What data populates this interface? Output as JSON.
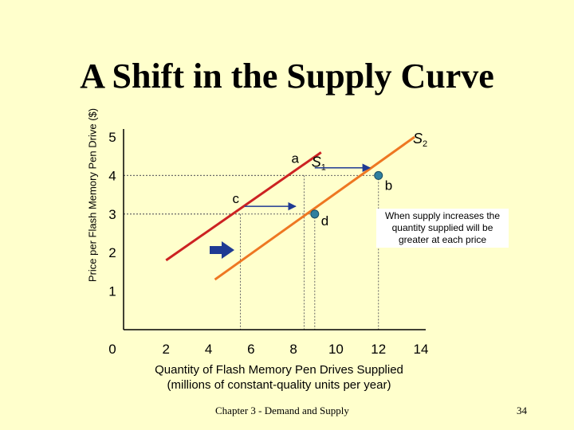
{
  "slide": {
    "title": "A Shift in the Supply Curve",
    "footer": "Chapter 3 - Demand and Supply",
    "page_number": "34"
  },
  "callout": "When supply increases the quantity supplied will be greater at each price",
  "chart_data": {
    "type": "line",
    "title": "A Shift in the Supply Curve",
    "xlabel_line1": "Quantity of Flash Memory Pen Drives Supplied",
    "xlabel_line2": "(millions of constant-quality units per year)",
    "ylabel": "Price per Flash Memory Pen Drive ($)",
    "xlim": [
      0,
      14
    ],
    "ylim": [
      0,
      5
    ],
    "x_ticks": [
      0,
      2,
      4,
      6,
      8,
      10,
      12,
      14
    ],
    "y_ticks": [
      1,
      2,
      3,
      4,
      5
    ],
    "series": [
      {
        "name": "S1",
        "label_main": "S",
        "label_sub": "1",
        "color": "#cc2222",
        "points": [
          [
            2,
            1.8
          ],
          [
            9.3,
            4.6
          ]
        ]
      },
      {
        "name": "S2",
        "label_main": "S",
        "label_sub": "2",
        "color": "#ee7722",
        "points": [
          [
            4.3,
            1.3
          ],
          [
            13.7,
            5.0
          ]
        ]
      }
    ],
    "points": [
      {
        "label": "a",
        "x": 8.5,
        "y": 4,
        "marker": false
      },
      {
        "label": "b",
        "x": 12,
        "y": 4,
        "marker": true
      },
      {
        "label": "c",
        "x": 5.5,
        "y": 3,
        "marker": false
      },
      {
        "label": "d",
        "x": 9,
        "y": 3,
        "marker": true
      }
    ],
    "shift_arrows": [
      {
        "from": [
          9,
          4.2
        ],
        "to": [
          11.6,
          4.2
        ]
      },
      {
        "from": [
          5.7,
          3.2
        ],
        "to": [
          8.1,
          3.2
        ]
      }
    ],
    "shift_indicator_color": "#1f3a93",
    "marker_color": "#2f7f9f"
  }
}
